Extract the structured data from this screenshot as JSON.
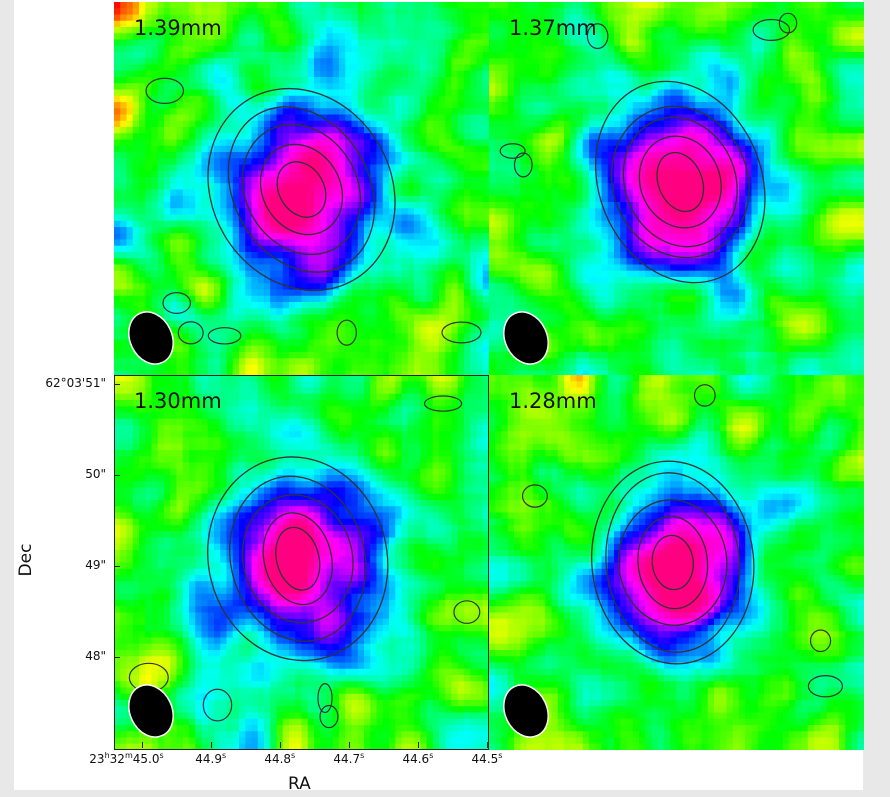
{
  "chart_data": {
    "type": "heatmap",
    "panels": [
      {
        "label": "1.39mm",
        "peak_ra_offset": 0.7,
        "peak_dec_offset": 0.0
      },
      {
        "label": "1.37mm",
        "peak_ra_offset": 0.8,
        "peak_dec_offset": 0.2
      },
      {
        "label": "1.30mm",
        "peak_ra_offset": 0.6,
        "peak_dec_offset": 0.1
      },
      {
        "label": "1.28mm",
        "peak_ra_offset": 0.6,
        "peak_dec_offset": 0.0
      }
    ],
    "xlabel": "RA",
    "ylabel": "Dec",
    "x_ticks": [
      {
        "value": 45.0,
        "label_parts": [
          "23",
          "h",
          "32",
          "m",
          "45.0",
          "s"
        ]
      },
      {
        "value": 44.9,
        "label_parts": [
          "44.9",
          "s"
        ]
      },
      {
        "value": 44.8,
        "label_parts": [
          "44.8",
          "s"
        ]
      },
      {
        "value": 44.7,
        "label_parts": [
          "44.7",
          "s"
        ]
      },
      {
        "value": 44.6,
        "label_parts": [
          "44.6",
          "s"
        ]
      },
      {
        "value": 44.5,
        "label_parts": [
          "44.5",
          "s"
        ]
      }
    ],
    "y_ticks": [
      {
        "value": 51,
        "label": "62°03'51\""
      },
      {
        "value": 50,
        "label": "50\""
      },
      {
        "value": 49,
        "label": "49\""
      },
      {
        "value": 48,
        "label": "48\""
      }
    ],
    "xlim": [
      45.04,
      44.5
    ],
    "ylim": [
      47.0,
      51.1
    ],
    "colormap": [
      "#ff0000",
      "#ffff00",
      "#00ff00",
      "#00ffff",
      "#0000ff",
      "#ff00ff",
      "#ff0080"
    ],
    "beam_color": "#000000",
    "contour_color": "#333333"
  }
}
